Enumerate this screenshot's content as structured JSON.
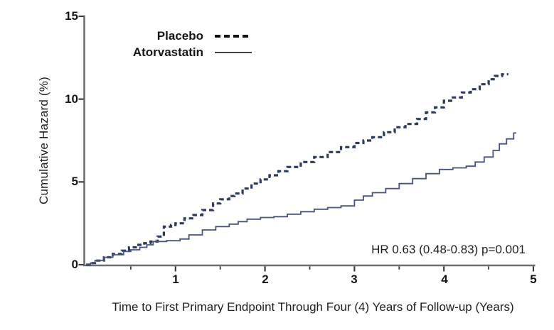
{
  "figure": {
    "background": "#ffffff",
    "text_color": "#1c1c1c",
    "axis_color": "#6e6e6e",
    "tick_color": "#3c3c3c"
  },
  "chart_data": {
    "type": "line",
    "subtype": "kaplan-meier-step-curves",
    "title": "",
    "xlabel": "Time to First Primary Endpoint Through Four (4) Years of Follow-up (Years)",
    "ylabel": "Cumulative Hazard (%)",
    "annotation": "HR 0.63 (0.48-0.83)  p=0.001",
    "xlim": [
      0,
      5
    ],
    "ylim": [
      0,
      15
    ],
    "x_ticks": [
      1,
      2,
      3,
      4,
      5
    ],
    "x_minor_ticks": [
      0.5,
      1.5,
      2.5,
      3.5,
      4.5
    ],
    "y_ticks": [
      0,
      5,
      10,
      15
    ],
    "grid": false,
    "legend_position": "top-left-inside",
    "legend": [
      {
        "label": "Placebo",
        "style": "dashed",
        "swatch_color": "#111111"
      },
      {
        "label": "Atorvastatin",
        "style": "solid",
        "swatch_color": "#444444"
      }
    ],
    "series": [
      {
        "name": "Placebo",
        "style": "dashed",
        "color": "#2c3a5e",
        "width": 3.2,
        "points": [
          [
            0,
            0
          ],
          [
            0.05,
            0.1
          ],
          [
            0.1,
            0.25
          ],
          [
            0.2,
            0.45
          ],
          [
            0.3,
            0.65
          ],
          [
            0.4,
            0.85
          ],
          [
            0.48,
            1.05
          ],
          [
            0.57,
            1.2
          ],
          [
            0.65,
            1.3
          ],
          [
            0.72,
            1.4
          ],
          [
            0.8,
            1.7
          ],
          [
            0.87,
            2.3
          ],
          [
            0.95,
            2.4
          ],
          [
            1.0,
            2.5
          ],
          [
            1.1,
            2.8
          ],
          [
            1.2,
            3.0
          ],
          [
            1.3,
            3.3
          ],
          [
            1.42,
            3.7
          ],
          [
            1.5,
            3.95
          ],
          [
            1.6,
            4.15
          ],
          [
            1.66,
            4.3
          ],
          [
            1.75,
            4.6
          ],
          [
            1.85,
            4.9
          ],
          [
            1.95,
            5.15
          ],
          [
            2.05,
            5.4
          ],
          [
            2.15,
            5.65
          ],
          [
            2.25,
            5.9
          ],
          [
            2.4,
            6.2
          ],
          [
            2.55,
            6.5
          ],
          [
            2.7,
            6.8
          ],
          [
            2.85,
            7.1
          ],
          [
            3.0,
            7.35
          ],
          [
            3.1,
            7.5
          ],
          [
            3.2,
            7.7
          ],
          [
            3.33,
            8.0
          ],
          [
            3.45,
            8.3
          ],
          [
            3.57,
            8.5
          ],
          [
            3.7,
            8.8
          ],
          [
            3.8,
            9.2
          ],
          [
            3.9,
            9.5
          ],
          [
            4.0,
            9.9
          ],
          [
            4.1,
            10.1
          ],
          [
            4.2,
            10.4
          ],
          [
            4.3,
            10.6
          ],
          [
            4.4,
            10.9
          ],
          [
            4.5,
            11.2
          ],
          [
            4.57,
            11.4
          ],
          [
            4.65,
            11.5
          ],
          [
            4.72,
            11.5
          ]
        ]
      },
      {
        "name": "Atorvastatin",
        "style": "solid",
        "color": "#47557c",
        "width": 1.8,
        "points": [
          [
            0,
            0
          ],
          [
            0.05,
            0.1
          ],
          [
            0.1,
            0.25
          ],
          [
            0.2,
            0.45
          ],
          [
            0.3,
            0.6
          ],
          [
            0.42,
            0.8
          ],
          [
            0.5,
            0.9
          ],
          [
            0.6,
            1.05
          ],
          [
            0.68,
            1.2
          ],
          [
            0.75,
            1.4
          ],
          [
            0.9,
            1.45
          ],
          [
            1.05,
            1.55
          ],
          [
            1.15,
            1.8
          ],
          [
            1.3,
            2.1
          ],
          [
            1.45,
            2.3
          ],
          [
            1.6,
            2.45
          ],
          [
            1.7,
            2.6
          ],
          [
            1.8,
            2.75
          ],
          [
            1.95,
            2.85
          ],
          [
            2.1,
            2.9
          ],
          [
            2.25,
            3.05
          ],
          [
            2.4,
            3.2
          ],
          [
            2.55,
            3.35
          ],
          [
            2.7,
            3.45
          ],
          [
            2.85,
            3.55
          ],
          [
            3.0,
            3.9
          ],
          [
            3.1,
            4.15
          ],
          [
            3.2,
            4.35
          ],
          [
            3.35,
            4.6
          ],
          [
            3.5,
            4.9
          ],
          [
            3.65,
            5.2
          ],
          [
            3.8,
            5.5
          ],
          [
            3.95,
            5.75
          ],
          [
            4.1,
            5.85
          ],
          [
            4.25,
            5.95
          ],
          [
            4.35,
            6.2
          ],
          [
            4.45,
            6.5
          ],
          [
            4.55,
            6.9
          ],
          [
            4.62,
            7.3
          ],
          [
            4.7,
            7.6
          ],
          [
            4.78,
            7.95
          ],
          [
            4.8,
            8.0
          ]
        ]
      }
    ]
  }
}
